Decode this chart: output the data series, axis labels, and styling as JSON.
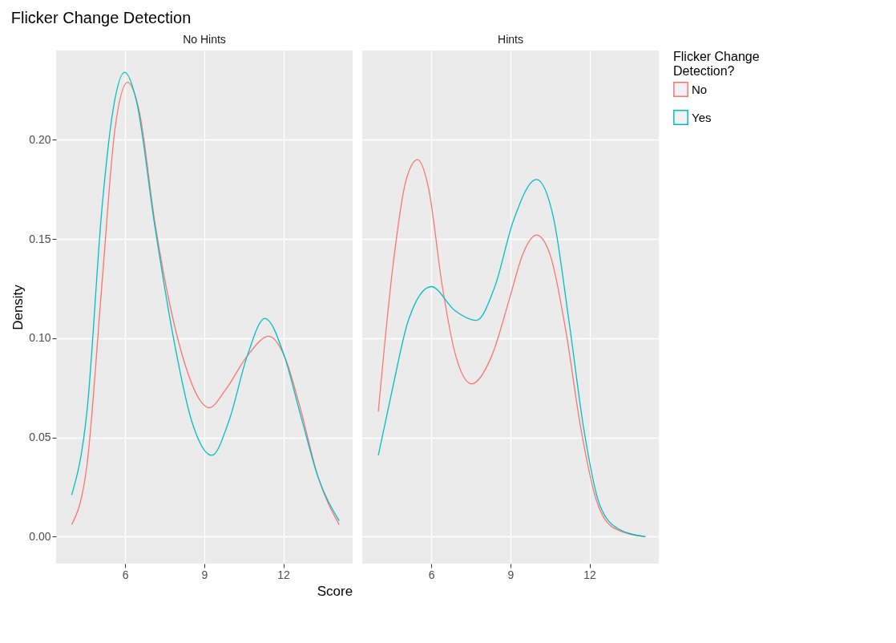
{
  "chart_data": [
    {
      "type": "line",
      "title": "Flicker Change Detection",
      "subtitle": "No Hints",
      "legend_title": "Flicker Change Detection?",
      "legend": "right",
      "xlabel": "Score",
      "ylabel": "Density",
      "xlim": [
        3.38,
        14.63
      ],
      "ylim": [
        -0.0136,
        0.245
      ],
      "xticks": [
        6,
        9,
        12
      ],
      "yticks": [
        {
          "value": 0,
          "label": "0.00"
        },
        {
          "value": 0.05,
          "label": "0.05"
        },
        {
          "value": 0.1,
          "label": "0.10"
        },
        {
          "value": 0.15,
          "label": "0.15"
        },
        {
          "value": 0.2,
          "label": "0.20"
        }
      ],
      "grid": true,
      "series": [
        {
          "name": "No",
          "color": "#f8766d",
          "x": [
            3.97,
            4.55,
            5.13,
            5.6,
            6.09,
            6.54,
            7.12,
            7.71,
            8.29,
            8.88,
            9.19,
            9.81,
            10.63,
            11.45,
            12.04,
            12.62,
            13.32,
            14.12
          ],
          "values": [
            0.006,
            0.036,
            0.129,
            0.204,
            0.229,
            0.214,
            0.159,
            0.116,
            0.086,
            0.068,
            0.065,
            0.074,
            0.091,
            0.101,
            0.091,
            0.066,
            0.03,
            0.006
          ]
        },
        {
          "name": "Yes",
          "color": "#00bfc4",
          "x": [
            3.97,
            4.55,
            5.13,
            5.54,
            5.98,
            6.42,
            7.12,
            7.82,
            8.53,
            9.29,
            9.93,
            10.63,
            11.3,
            12.04,
            12.62,
            13.32,
            14.12
          ],
          "values": [
            0.021,
            0.063,
            0.167,
            0.215,
            0.234,
            0.22,
            0.157,
            0.101,
            0.058,
            0.041,
            0.058,
            0.091,
            0.11,
            0.091,
            0.063,
            0.03,
            0.008
          ]
        }
      ]
    },
    {
      "type": "line",
      "subtitle": "Hints",
      "tick_labels": "x",
      "xlim": [
        3.38,
        14.63
      ],
      "ylim": [
        -0.0136,
        0.245
      ],
      "xticks": [
        6,
        9,
        12
      ],
      "yticks": [
        0,
        0.05,
        0.1,
        0.15,
        0.2
      ],
      "grid": true,
      "series": [
        {
          "name": "No",
          "color": "#f8766d",
          "x": [
            3.99,
            4.55,
            5.03,
            5.48,
            5.89,
            6.42,
            6.89,
            7.53,
            8.29,
            8.99,
            9.46,
            9.99,
            10.51,
            11.1,
            11.68,
            12.27,
            12.97,
            14.12
          ],
          "values": [
            0.063,
            0.137,
            0.179,
            0.19,
            0.176,
            0.126,
            0.093,
            0.077,
            0.091,
            0.121,
            0.142,
            0.152,
            0.142,
            0.104,
            0.054,
            0.018,
            0.004,
            0
          ]
        },
        {
          "name": "Yes",
          "color": "#00bfc4",
          "x": [
            3.99,
            4.55,
            5.13,
            6.0,
            6.89,
            7.71,
            8.41,
            9.11,
            9.99,
            10.63,
            11.22,
            11.8,
            12.39,
            13.09,
            14.12
          ],
          "values": [
            0.041,
            0.076,
            0.109,
            0.126,
            0.114,
            0.109,
            0.126,
            0.159,
            0.18,
            0.161,
            0.109,
            0.053,
            0.016,
            0.004,
            0
          ]
        }
      ]
    }
  ]
}
